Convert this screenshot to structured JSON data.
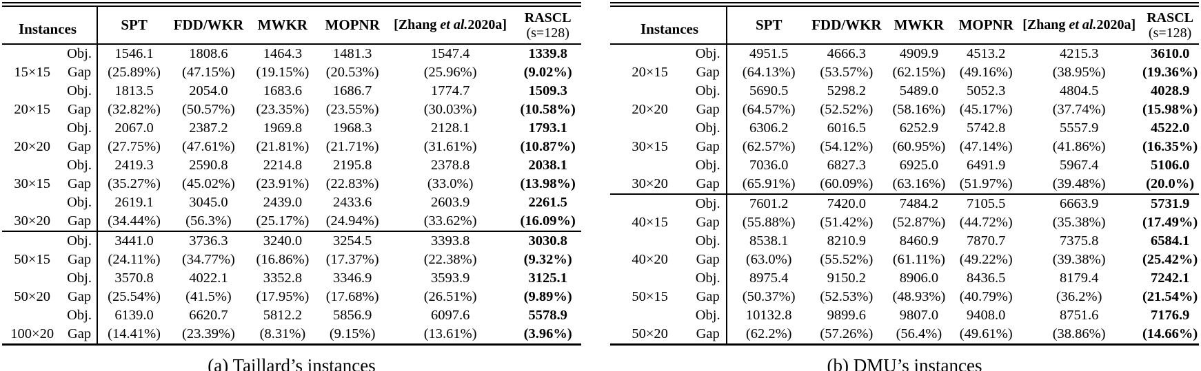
{
  "tables": [
    {
      "id": "a",
      "caption": "(a) Taillard’s instances",
      "header": {
        "instances_label": "Instances",
        "columns": [
          "SPT",
          "FDD/WKR",
          "MWKR",
          "MOPNR"
        ],
        "zhang": {
          "pre": "[Zhang ",
          "italic": "et al.",
          "post": "2020a]"
        },
        "rascl": {
          "line1": "RASCL",
          "line2": "(s=128)"
        }
      },
      "row_labels": {
        "obj": "Obj.",
        "gap": "Gap"
      },
      "groups": [
        {
          "instance": "15×15",
          "rule_above": false,
          "obj": [
            "1546.1",
            "1808.6",
            "1464.3",
            "1481.3",
            "1547.4",
            "1339.8"
          ],
          "gap": [
            "(25.89%)",
            "(47.15%)",
            "(19.15%)",
            "(20.53%)",
            "(25.96%)",
            "(9.02%)"
          ]
        },
        {
          "instance": "20×15",
          "rule_above": false,
          "obj": [
            "1813.5",
            "2054.0",
            "1683.6",
            "1686.7",
            "1774.7",
            "1509.3"
          ],
          "gap": [
            "(32.82%)",
            "(50.57%)",
            "(23.35%)",
            "(23.55%)",
            "(30.03%)",
            "(10.58%)"
          ]
        },
        {
          "instance": "20×20",
          "rule_above": false,
          "obj": [
            "2067.0",
            "2387.2",
            "1969.8",
            "1968.3",
            "2128.1",
            "1793.1"
          ],
          "gap": [
            "(27.75%)",
            "(47.61%)",
            "(21.81%)",
            "(21.71%)",
            "(31.61%)",
            "(10.87%)"
          ]
        },
        {
          "instance": "30×15",
          "rule_above": false,
          "obj": [
            "2419.3",
            "2590.8",
            "2214.8",
            "2195.8",
            "2378.8",
            "2038.1"
          ],
          "gap": [
            "(35.27%)",
            "(45.02%)",
            "(23.91%)",
            "(22.83%)",
            "(33.0%)",
            "(13.98%)"
          ]
        },
        {
          "instance": "30×20",
          "rule_above": false,
          "obj": [
            "2619.1",
            "3045.0",
            "2439.0",
            "2433.6",
            "2603.9",
            "2261.5"
          ],
          "gap": [
            "(34.44%)",
            "(56.3%)",
            "(25.17%)",
            "(24.94%)",
            "(33.62%)",
            "(16.09%)"
          ]
        },
        {
          "instance": "50×15",
          "rule_above": true,
          "obj": [
            "3441.0",
            "3736.3",
            "3240.0",
            "3254.5",
            "3393.8",
            "3030.8"
          ],
          "gap": [
            "(24.11%)",
            "(34.77%)",
            "(16.86%)",
            "(17.37%)",
            "(22.38%)",
            "(9.32%)"
          ]
        },
        {
          "instance": "50×20",
          "rule_above": false,
          "obj": [
            "3570.8",
            "4022.1",
            "3352.8",
            "3346.9",
            "3593.9",
            "3125.1"
          ],
          "gap": [
            "(25.54%)",
            "(41.5%)",
            "(17.95%)",
            "(17.68%)",
            "(26.51%)",
            "(9.89%)"
          ]
        },
        {
          "instance": "100×20",
          "rule_above": false,
          "obj": [
            "6139.0",
            "6620.7",
            "5812.2",
            "5856.9",
            "6097.6",
            "5578.9"
          ],
          "gap": [
            "(14.41%)",
            "(23.39%)",
            "(8.31%)",
            "(9.15%)",
            "(13.61%)",
            "(3.96%)"
          ]
        }
      ]
    },
    {
      "id": "b",
      "caption": "(b) DMU’s instances",
      "header": {
        "instances_label": "Instances",
        "columns": [
          "SPT",
          "FDD/WKR",
          "MWKR",
          "MOPNR"
        ],
        "zhang": {
          "pre": "[Zhang ",
          "italic": "et al.",
          "post": "2020a]"
        },
        "rascl": {
          "line1": "RASCL",
          "line2": "(s=128)"
        }
      },
      "row_labels": {
        "obj": "Obj.",
        "gap": "Gap"
      },
      "groups": [
        {
          "instance": "20×15",
          "rule_above": false,
          "obj": [
            "4951.5",
            "4666.3",
            "4909.9",
            "4513.2",
            "4215.3",
            "3610.0"
          ],
          "gap": [
            "(64.13%)",
            "(53.57%)",
            "(62.15%)",
            "(49.16%)",
            "(38.95%)",
            "(19.36%)"
          ]
        },
        {
          "instance": "20×20",
          "rule_above": false,
          "obj": [
            "5690.5",
            "5298.2",
            "5489.0",
            "5052.3",
            "4804.5",
            "4028.9"
          ],
          "gap": [
            "(64.57%)",
            "(52.52%)",
            "(58.16%)",
            "(45.17%)",
            "(37.74%)",
            "(15.98%)"
          ]
        },
        {
          "instance": "30×15",
          "rule_above": false,
          "obj": [
            "6306.2",
            "6016.5",
            "6252.9",
            "5742.8",
            "5557.9",
            "4522.0"
          ],
          "gap": [
            "(62.57%)",
            "(54.12%)",
            "(60.95%)",
            "(47.14%)",
            "(41.86%)",
            "(16.35%)"
          ]
        },
        {
          "instance": "30×20",
          "rule_above": false,
          "obj": [
            "7036.0",
            "6827.3",
            "6925.0",
            "6491.9",
            "5967.4",
            "5106.0"
          ],
          "gap": [
            "(65.91%)",
            "(60.09%)",
            "(63.16%)",
            "(51.97%)",
            "(39.48%)",
            "(20.0%)"
          ]
        },
        {
          "instance": "40×15",
          "rule_above": true,
          "obj": [
            "7601.2",
            "7420.0",
            "7484.2",
            "7105.5",
            "6663.9",
            "5731.9"
          ],
          "gap": [
            "(55.88%)",
            "(51.42%)",
            "(52.87%)",
            "(44.72%)",
            "(35.38%)",
            "(17.49%)"
          ]
        },
        {
          "instance": "40×20",
          "rule_above": false,
          "obj": [
            "8538.1",
            "8210.9",
            "8460.9",
            "7870.7",
            "7375.8",
            "6584.1"
          ],
          "gap": [
            "(63.0%)",
            "(55.52%)",
            "(61.11%)",
            "(49.22%)",
            "(39.38%)",
            "(25.42%)"
          ]
        },
        {
          "instance": "50×15",
          "rule_above": false,
          "obj": [
            "8975.4",
            "9150.2",
            "8906.0",
            "8436.5",
            "8179.4",
            "7242.1"
          ],
          "gap": [
            "(50.37%)",
            "(52.53%)",
            "(48.93%)",
            "(40.79%)",
            "(36.2%)",
            "(21.54%)"
          ]
        },
        {
          "instance": "50×20",
          "rule_above": false,
          "obj": [
            "10132.8",
            "9899.6",
            "9807.0",
            "9408.0",
            "8751.6",
            "7176.9"
          ],
          "gap": [
            "(62.2%)",
            "(57.26%)",
            "(56.4%)",
            "(49.61%)",
            "(38.86%)",
            "(14.66%)"
          ]
        }
      ]
    }
  ]
}
